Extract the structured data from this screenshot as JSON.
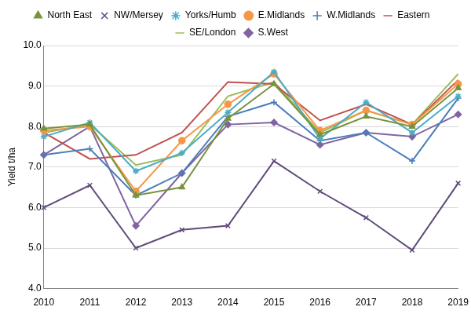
{
  "chart_data": {
    "type": "line",
    "y_label": "Yield t/ha",
    "categories": [
      "2010",
      "2011",
      "2012",
      "2013",
      "2014",
      "2015",
      "2016",
      "2017",
      "2018",
      "2019"
    ],
    "series": [
      {
        "name": "North East",
        "color": "#77933c",
        "marker": "triangle",
        "values": [
          7.95,
          8.05,
          6.3,
          6.5,
          8.2,
          9.05,
          7.8,
          8.25,
          8.0,
          8.95
        ]
      },
      {
        "name": "NW/Mersey",
        "color": "#604a7b",
        "marker": "x",
        "values": [
          6.0,
          6.55,
          5.0,
          5.45,
          5.55,
          7.15,
          6.4,
          5.75,
          4.95,
          6.6
        ]
      },
      {
        "name": "Yorks/Humb",
        "color": "#4bacc6",
        "marker": "asterisk",
        "values": [
          7.75,
          8.1,
          6.9,
          7.35,
          8.35,
          9.35,
          7.7,
          8.6,
          7.85,
          8.75
        ]
      },
      {
        "name": "E.Midlands",
        "color": "#f79646",
        "marker": "circle",
        "values": [
          7.9,
          8.0,
          6.4,
          7.65,
          8.55,
          9.3,
          7.9,
          8.4,
          8.05,
          9.05
        ]
      },
      {
        "name": "W.Midlands",
        "color": "#4a7ebb",
        "marker": "plus",
        "values": [
          7.3,
          7.45,
          6.3,
          6.85,
          8.25,
          8.6,
          7.65,
          7.85,
          7.15,
          8.7
        ]
      },
      {
        "name": "Eastern",
        "color": "#c0504d",
        "marker": "none",
        "values": [
          7.85,
          7.2,
          7.3,
          7.85,
          9.1,
          9.05,
          8.15,
          8.55,
          8.05,
          9.15
        ]
      },
      {
        "name": "SE/London",
        "color": "#9bbb59",
        "marker": "none",
        "values": [
          7.85,
          8.05,
          7.05,
          7.3,
          8.75,
          9.1,
          7.85,
          8.4,
          8.05,
          9.3
        ]
      },
      {
        "name": "S.West",
        "color": "#8064a2",
        "marker": "diamond",
        "values": [
          7.3,
          8.0,
          5.55,
          6.85,
          8.05,
          8.1,
          7.55,
          7.85,
          7.75,
          8.3
        ]
      }
    ],
    "ylim": [
      4,
      10
    ],
    "yticks": [
      {
        "value": 4,
        "label": "4.0"
      },
      {
        "value": 5,
        "label": "5.0"
      },
      {
        "value": 6,
        "label": "6.0"
      },
      {
        "value": 7,
        "label": "7.0"
      },
      {
        "value": 8,
        "label": "8.0"
      },
      {
        "value": 9,
        "label": "9.0"
      },
      {
        "value": 10,
        "label": "10.0"
      }
    ],
    "grid": true,
    "legend": "top"
  }
}
